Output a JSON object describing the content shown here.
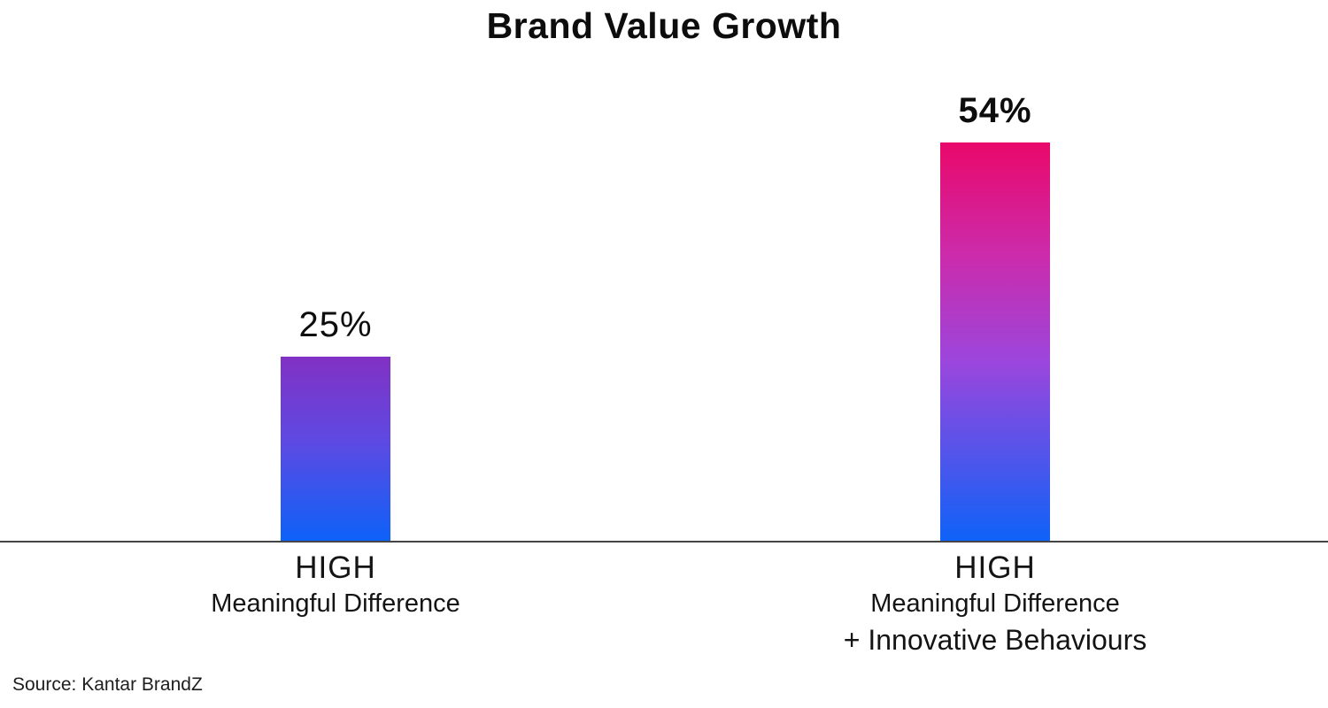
{
  "page": {
    "title": "Brand Value Growth",
    "source_note": "Source: Kantar BrandZ"
  },
  "chart_data": {
    "type": "bar",
    "title": "Brand Value Growth",
    "categories": [
      "HIGH Meaningful Difference",
      "HIGH Meaningful Difference + Innovative Behaviours"
    ],
    "values": [
      25,
      54
    ],
    "value_labels": [
      "25%",
      "54%"
    ],
    "xlabel": "",
    "ylabel": "",
    "ylim": [
      0,
      60
    ],
    "grid": false,
    "legend": false,
    "source": "Source: Kantar BrandZ",
    "colors": {
      "text": "#0d0d0d",
      "axis_line": "#454545",
      "bar1_top": "#8231C3",
      "bar1_bottom": "#0D62F8",
      "bar2_top": "#E9086A",
      "bar2_bottom": "#0E62F8"
    },
    "bars": [
      {
        "value": 25,
        "value_label": "25%",
        "value_label_bold": false,
        "label_lines": [
          "HIGH",
          "Meaningful Difference"
        ],
        "gradient": [
          [
            "#8231C3",
            "0%"
          ],
          [
            "#5E49E2",
            "45%"
          ],
          [
            "#0D62F8",
            "100%"
          ]
        ]
      },
      {
        "value": 54,
        "value_label": "54%",
        "value_label_bold": true,
        "label_lines": [
          "HIGH",
          "Meaningful Difference",
          "+ Innovative Behaviours"
        ],
        "gradient": [
          [
            "#E9086A",
            "0%"
          ],
          [
            "#CC2BAB",
            "28%"
          ],
          [
            "#9B46DC",
            "55%"
          ],
          [
            "#0E62F8",
            "100%"
          ]
        ]
      }
    ]
  }
}
